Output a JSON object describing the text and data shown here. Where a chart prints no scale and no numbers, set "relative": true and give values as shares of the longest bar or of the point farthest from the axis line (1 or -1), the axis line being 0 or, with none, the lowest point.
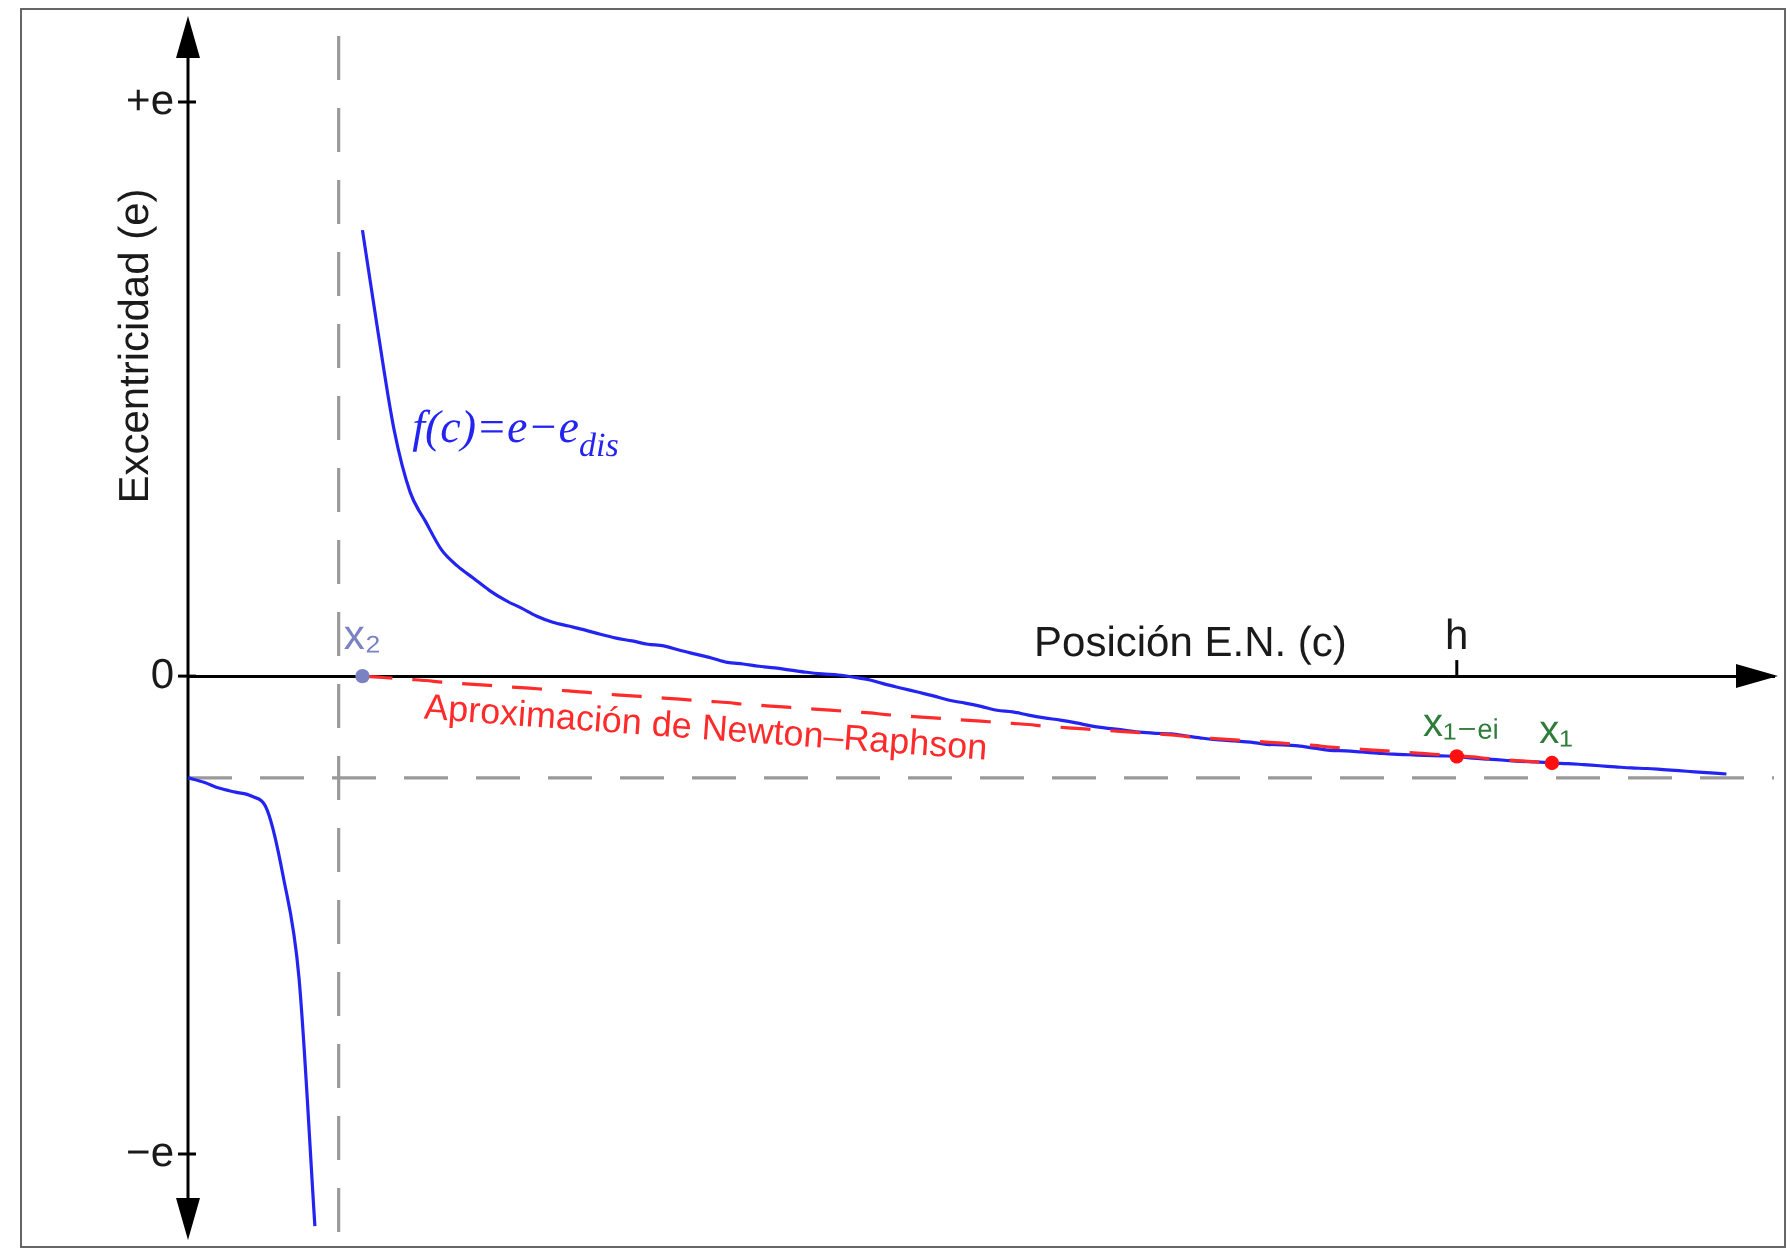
{
  "chart_data": {
    "type": "line",
    "relative": true,
    "xlabel": "Posición E.N. (c)",
    "ylabel": "Excentricidad (e)",
    "legend": false,
    "marker": "none",
    "categories": [
      null,
      null,
      null,
      null,
      null,
      null,
      null,
      null,
      null,
      null,
      null,
      "x₂",
      null,
      null,
      null,
      null,
      null,
      null,
      null,
      null,
      null,
      null,
      null,
      null,
      null,
      null,
      null,
      null,
      null,
      null,
      null,
      null,
      null,
      null,
      null,
      null,
      null,
      null,
      null,
      null,
      null,
      null,
      null,
      null,
      null,
      null,
      null,
      null,
      null,
      null,
      null,
      null,
      null,
      null,
      null,
      null,
      null,
      null,
      null,
      null,
      null,
      null,
      null,
      null,
      null,
      null,
      null,
      null,
      null,
      null,
      null,
      null,
      null,
      null,
      null,
      null,
      null,
      null,
      null,
      null,
      "h",
      null,
      null,
      null,
      null,
      null,
      null,
      null,
      null,
      null,
      null,
      null,
      null,
      null,
      null,
      null,
      null,
      null,
      null,
      null,
      null
    ],
    "series": [
      {
        "name": "f(c)=e−e$_{dis}$",
        "color": "#2424f2",
        "values": [
          -0.185,
          -0.193,
          -0.204,
          -0.211,
          -0.218,
          -0.244,
          -0.364,
          -0.549,
          -1,
          null,
          null,
          0.811,
          0.622,
          0.447,
          0.335,
          0.28,
          0.229,
          0.2,
          0.178,
          0.156,
          0.138,
          0.124,
          0.109,
          0.098,
          0.091,
          0.084,
          0.076,
          0.069,
          0.064,
          0.058,
          0.055,
          0.047,
          0.04,
          0.033,
          0.025,
          0.022,
          0.018,
          0.015,
          0.011,
          0.007,
          0.004,
          0.002,
          -0.002,
          -0.007,
          -0.015,
          -0.022,
          -0.029,
          -0.036,
          -0.044,
          -0.049,
          -0.055,
          -0.062,
          -0.065,
          -0.071,
          -0.076,
          -0.08,
          -0.085,
          -0.091,
          -0.095,
          -0.098,
          -0.102,
          -0.104,
          -0.105,
          -0.109,
          -0.113,
          -0.116,
          -0.118,
          -0.12,
          -0.124,
          -0.125,
          -0.127,
          -0.131,
          -0.135,
          -0.136,
          -0.138,
          -0.14,
          -0.142,
          -0.143,
          -0.144,
          -0.145,
          -0.146,
          -0.149,
          -0.151,
          -0.153,
          -0.155,
          -0.156,
          -0.158,
          -0.159,
          -0.161,
          -0.163,
          -0.165,
          -0.167,
          -0.168,
          -0.17,
          -0.172,
          -0.174,
          -0.176,
          -0.178,
          null,
          null,
          null
        ]
      },
      {
        "name": "Aproximación de Newton–Raphson",
        "line_style": "dashed",
        "color": "#ff2a2a",
        "values": [
          null,
          null,
          null,
          null,
          null,
          null,
          null,
          null,
          null,
          null,
          null,
          0,
          -0.002,
          -0.004,
          -0.006,
          -0.008,
          -0.011,
          -0.013,
          -0.015,
          -0.017,
          -0.019,
          -0.021,
          -0.023,
          -0.025,
          -0.027,
          -0.029,
          -0.032,
          -0.034,
          -0.036,
          -0.038,
          -0.04,
          -0.042,
          -0.044,
          -0.046,
          -0.048,
          -0.051,
          -0.053,
          -0.055,
          -0.057,
          -0.059,
          -0.061,
          -0.063,
          -0.065,
          -0.067,
          -0.07,
          -0.072,
          -0.074,
          -0.076,
          -0.078,
          -0.08,
          -0.082,
          -0.084,
          -0.086,
          -0.088,
          -0.091,
          -0.093,
          -0.095,
          -0.097,
          -0.099,
          -0.101,
          -0.103,
          -0.105,
          -0.107,
          -0.11,
          -0.112,
          -0.114,
          -0.116,
          -0.118,
          -0.12,
          -0.122,
          -0.124,
          -0.126,
          -0.129,
          -0.131,
          -0.133,
          -0.135,
          -0.137,
          -0.139,
          -0.141,
          -0.143,
          -0.145,
          -0.147,
          -0.15,
          -0.152,
          -0.154,
          -0.156,
          -0.158,
          null,
          null,
          null,
          null,
          null,
          null,
          null,
          null,
          null,
          null,
          null,
          null,
          null,
          null
        ]
      },
      {
        "type": "scatter",
        "marker": "circle",
        "color": "#7b82c4",
        "values": [
          null,
          null,
          null,
          null,
          null,
          null,
          null,
          null,
          null,
          null,
          null,
          0,
          null,
          null,
          null,
          null,
          null,
          null,
          null,
          null,
          null,
          null,
          null,
          null,
          null,
          null,
          null,
          null,
          null,
          null,
          null,
          null,
          null,
          null,
          null,
          null,
          null,
          null,
          null,
          null,
          null,
          null,
          null,
          null,
          null,
          null,
          null,
          null,
          null,
          null,
          null,
          null,
          null,
          null,
          null,
          null,
          null,
          null,
          null,
          null,
          null,
          null,
          null,
          null,
          null,
          null,
          null,
          null,
          null,
          null,
          null,
          null,
          null,
          null,
          null,
          null,
          null,
          null,
          null,
          null,
          null,
          null,
          null,
          null,
          null,
          null,
          null,
          null,
          null,
          null,
          null,
          null,
          null,
          null,
          null,
          null,
          null,
          null,
          null,
          null,
          null
        ]
      },
      {
        "name": "x₁₋ₑᵢ",
        "type": "scatter",
        "marker": "circle",
        "color": "#ff1010",
        "values": [
          null,
          null,
          null,
          null,
          null,
          null,
          null,
          null,
          null,
          null,
          null,
          null,
          null,
          null,
          null,
          null,
          null,
          null,
          null,
          null,
          null,
          null,
          null,
          null,
          null,
          null,
          null,
          null,
          null,
          null,
          null,
          null,
          null,
          null,
          null,
          null,
          null,
          null,
          null,
          null,
          null,
          null,
          null,
          null,
          null,
          null,
          null,
          null,
          null,
          null,
          null,
          null,
          null,
          null,
          null,
          null,
          null,
          null,
          null,
          null,
          null,
          null,
          null,
          null,
          null,
          null,
          null,
          null,
          null,
          null,
          null,
          null,
          null,
          null,
          null,
          null,
          null,
          null,
          null,
          null,
          -0.146,
          null,
          null,
          null,
          null,
          null,
          null,
          null,
          null,
          null,
          null,
          null,
          null,
          null,
          null,
          null,
          null,
          null,
          null,
          null,
          null
        ]
      },
      {
        "name": "x₁",
        "type": "scatter",
        "marker": "circle",
        "color": "#ff1010",
        "values": [
          null,
          null,
          null,
          null,
          null,
          null,
          null,
          null,
          null,
          null,
          null,
          null,
          null,
          null,
          null,
          null,
          null,
          null,
          null,
          null,
          null,
          null,
          null,
          null,
          null,
          null,
          null,
          null,
          null,
          null,
          null,
          null,
          null,
          null,
          null,
          null,
          null,
          null,
          null,
          null,
          null,
          null,
          null,
          null,
          null,
          null,
          null,
          null,
          null,
          null,
          null,
          null,
          null,
          null,
          null,
          null,
          null,
          null,
          null,
          null,
          null,
          null,
          null,
          null,
          null,
          null,
          null,
          null,
          null,
          null,
          null,
          null,
          null,
          null,
          null,
          null,
          null,
          null,
          null,
          null,
          null,
          null,
          null,
          null,
          null,
          null,
          -0.158,
          null,
          null,
          null,
          null,
          null,
          null,
          null,
          null,
          null,
          null,
          null,
          null,
          null,
          null
        ]
      }
    ],
    "ref_lines": [
      {
        "axis": "y",
        "value": -0.185,
        "color": "#9a9a9a",
        "line_style": "dashed"
      }
    ],
    "annotations": [
      "+e",
      "0",
      "−e"
    ]
  }
}
